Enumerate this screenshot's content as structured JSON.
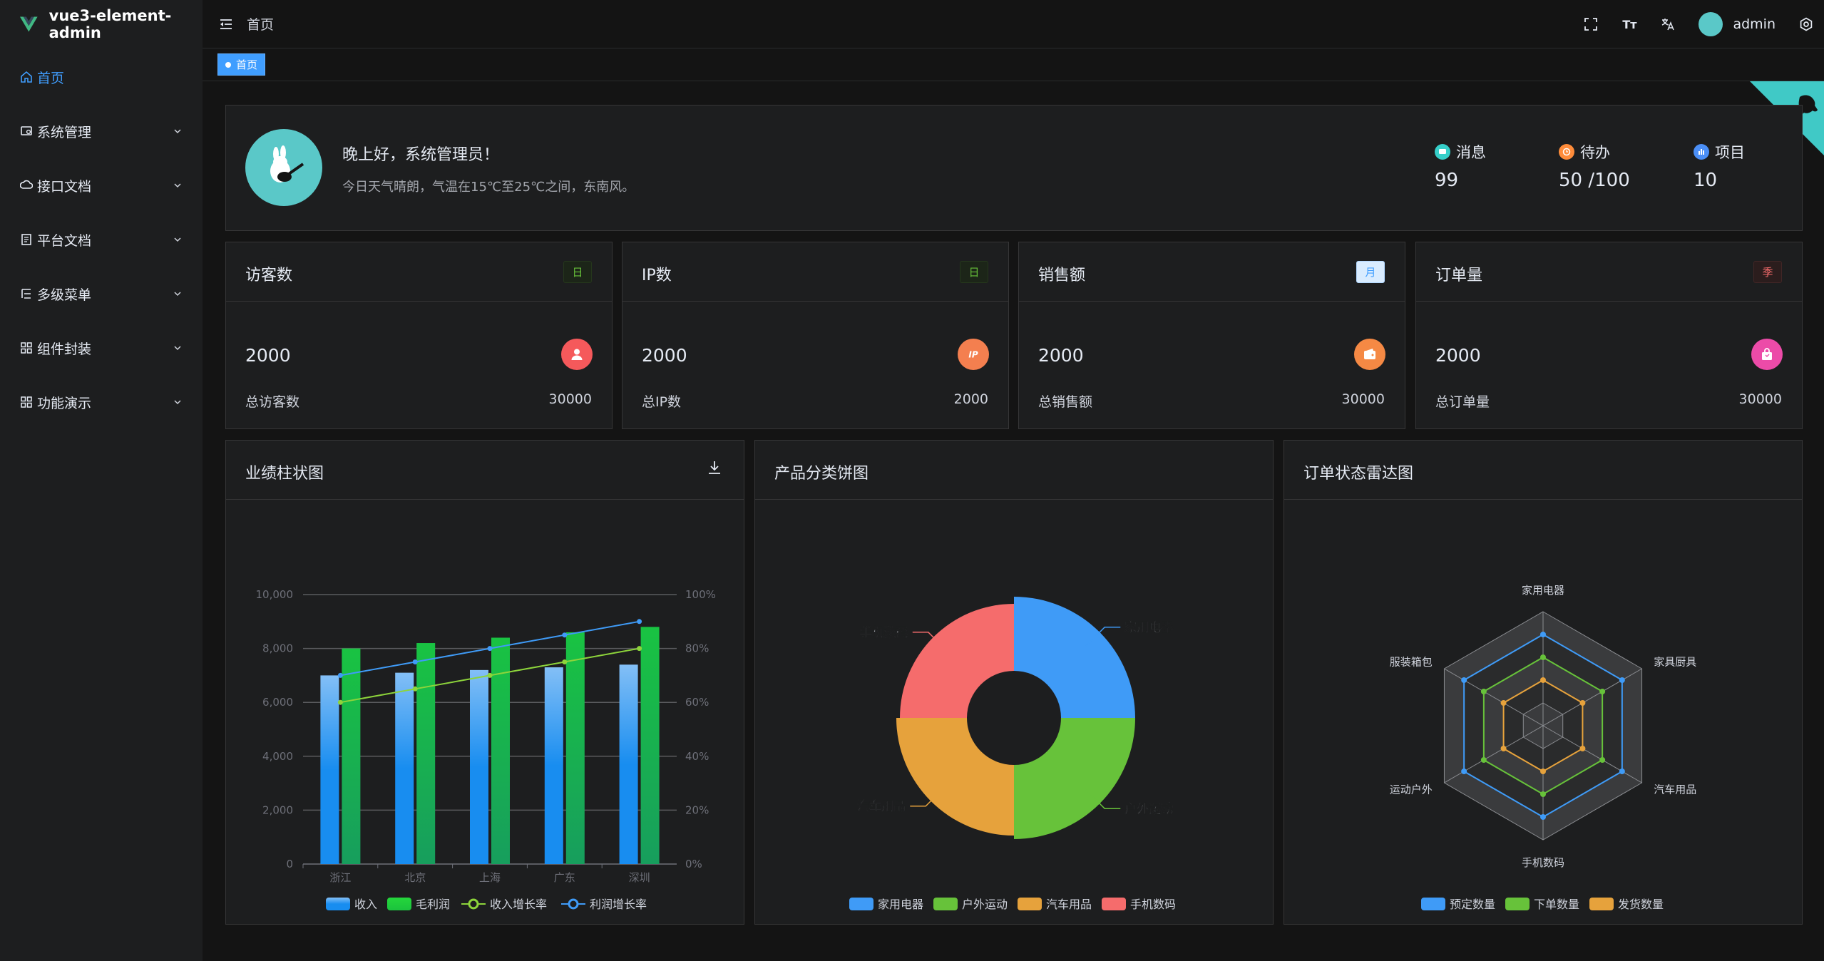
{
  "app": {
    "title": "vue3-element-admin"
  },
  "sidebar": {
    "items": [
      {
        "label": "首页",
        "icon": "home-icon"
      },
      {
        "label": "系统管理",
        "icon": "system-icon"
      },
      {
        "label": "接口文档",
        "icon": "api-icon"
      },
      {
        "label": "平台文档",
        "icon": "document-icon"
      },
      {
        "label": "多级菜单",
        "icon": "menu-tree-icon"
      },
      {
        "label": "组件封装",
        "icon": "component-icon"
      },
      {
        "label": "功能演示",
        "icon": "demo-icon"
      }
    ]
  },
  "header": {
    "breadcrumb": "首页",
    "username": "admin",
    "font_size_label": "Tт"
  },
  "tags": {
    "active": "首页"
  },
  "welcome": {
    "greeting": "晚上好，系统管理员！",
    "weather": "今日天气晴朗，气温在15℃至25℃之间，东南风。",
    "stats": [
      {
        "label": "消息",
        "value": "99",
        "color": "#36cfc9"
      },
      {
        "label": "待办",
        "value": "50 /100",
        "color": "#ff8c3a"
      },
      {
        "label": "项目",
        "value": "10",
        "color": "#4b8ff7"
      }
    ]
  },
  "metrics": [
    {
      "title": "访客数",
      "badge": "日",
      "value": "2000",
      "total_label": "总访客数",
      "total": "30000",
      "icon_color": "#f5595b",
      "badge_bg": "#1c2518",
      "badge_fg": "#67c23a",
      "badge_border": "#25371c"
    },
    {
      "title": "IP数",
      "badge": "日",
      "value": "2000",
      "total_label": "总IP数",
      "total": "2000",
      "icon_color": "#f47f4f",
      "badge_bg": "#1c2518",
      "badge_fg": "#67c23a",
      "badge_border": "#25371c"
    },
    {
      "title": "销售额",
      "badge": "月",
      "value": "2000",
      "total_label": "总销售额",
      "total": "30000",
      "icon_color": "#f58944",
      "badge_bg": "#d9ecff",
      "badge_fg": "#409eff",
      "badge_border": "#b3d8ff"
    },
    {
      "title": "订单量",
      "badge": "季",
      "value": "2000",
      "total_label": "总订单量",
      "total": "30000",
      "icon_color": "#ec4ba8",
      "badge_bg": "#2b1d1d",
      "badge_fg": "#f56c6c",
      "badge_border": "#412626"
    }
  ],
  "panels": {
    "bar_title": "业绩柱状图",
    "pie_title": "产品分类饼图",
    "radar_title": "订单状态雷达图"
  },
  "chart_data": [
    {
      "type": "bar",
      "title": "业绩柱状图",
      "categories": [
        "浙江",
        "北京",
        "上海",
        "广东",
        "深圳"
      ],
      "series": [
        {
          "name": "收入",
          "kind": "bar",
          "values": [
            7000,
            7100,
            7200,
            7300,
            7400
          ],
          "color": "#3f9bf7"
        },
        {
          "name": "毛利润",
          "kind": "bar",
          "values": [
            8000,
            8200,
            8400,
            8600,
            8800
          ],
          "color": "#19c342"
        },
        {
          "name": "收入增长率",
          "kind": "line",
          "axis": "right",
          "values": [
            60,
            65,
            70,
            75,
            80
          ],
          "color": "#8dd43b"
        },
        {
          "name": "利润增长率",
          "kind": "line",
          "axis": "right",
          "values": [
            70,
            75,
            80,
            85,
            90
          ],
          "color": "#3f9bf7"
        }
      ],
      "y_left": {
        "ticks": [
          "0",
          "2,000",
          "4,000",
          "6,000",
          "8,000",
          "10,000"
        ],
        "range": [
          0,
          10000
        ]
      },
      "y_right": {
        "ticks": [
          "0%",
          "20%",
          "40%",
          "60%",
          "80%",
          "100%"
        ],
        "range": [
          0,
          100
        ]
      }
    },
    {
      "type": "pie",
      "title": "产品分类饼图",
      "slices": [
        {
          "name": "家用电器",
          "value": 25,
          "color": "#3f9bf7"
        },
        {
          "name": "户外运动",
          "value": 25,
          "color": "#67c23a"
        },
        {
          "name": "汽车用品",
          "value": 25,
          "color": "#e6a23c"
        },
        {
          "name": "手机数码",
          "value": 25,
          "color": "#f56c6c"
        }
      ]
    },
    {
      "type": "radar",
      "title": "订单状态雷达图",
      "indicators": [
        "家用电器",
        "家具厨具",
        "汽车用品",
        "手机数码",
        "运动户外",
        "服装箱包"
      ],
      "series": [
        {
          "name": "预定数量",
          "color": "#3f9bf7",
          "level": 0.8
        },
        {
          "name": "下单数量",
          "color": "#67c23a",
          "level": 0.6
        },
        {
          "name": "发货数量",
          "color": "#e6a23c",
          "level": 0.4
        }
      ]
    }
  ]
}
